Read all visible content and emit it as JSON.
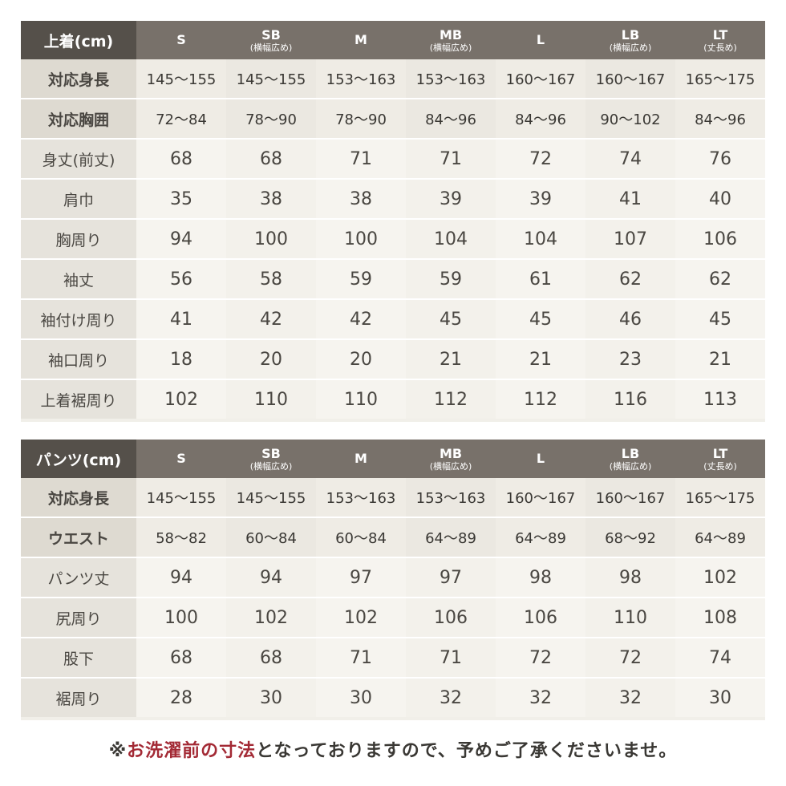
{
  "jacket": {
    "corner": "上着(cm)",
    "sizes": [
      {
        "main": "S",
        "sub": ""
      },
      {
        "main": "SB",
        "sub": "(横幅広め)"
      },
      {
        "main": "M",
        "sub": ""
      },
      {
        "main": "MB",
        "sub": "(横幅広め)"
      },
      {
        "main": "L",
        "sub": ""
      },
      {
        "main": "LB",
        "sub": "(横幅広め)"
      },
      {
        "main": "LT",
        "sub": "(丈長め)"
      }
    ],
    "rows": [
      {
        "label": "対応身長",
        "values": [
          "145〜155",
          "145〜155",
          "153〜163",
          "153〜163",
          "160〜167",
          "160〜167",
          "165〜175"
        ]
      },
      {
        "label": "対応胸囲",
        "values": [
          "72〜84",
          "78〜90",
          "78〜90",
          "84〜96",
          "84〜96",
          "90〜102",
          "84〜96"
        ]
      },
      {
        "label": "身丈(前丈)",
        "values": [
          "68",
          "68",
          "71",
          "71",
          "72",
          "74",
          "76"
        ]
      },
      {
        "label": "肩巾",
        "values": [
          "35",
          "38",
          "38",
          "39",
          "39",
          "41",
          "40"
        ]
      },
      {
        "label": "胸周り",
        "values": [
          "94",
          "100",
          "100",
          "104",
          "104",
          "107",
          "106"
        ]
      },
      {
        "label": "袖丈",
        "values": [
          "56",
          "58",
          "59",
          "59",
          "61",
          "62",
          "62"
        ]
      },
      {
        "label": "袖付け周り",
        "values": [
          "41",
          "42",
          "42",
          "45",
          "45",
          "46",
          "45"
        ]
      },
      {
        "label": "袖口周り",
        "values": [
          "18",
          "20",
          "20",
          "21",
          "21",
          "23",
          "21"
        ]
      },
      {
        "label": "上着裾周り",
        "values": [
          "102",
          "110",
          "110",
          "112",
          "112",
          "116",
          "113"
        ]
      }
    ]
  },
  "pants": {
    "corner": "パンツ(cm)",
    "sizes": [
      {
        "main": "S",
        "sub": ""
      },
      {
        "main": "SB",
        "sub": "(横幅広め)"
      },
      {
        "main": "M",
        "sub": ""
      },
      {
        "main": "MB",
        "sub": "(横幅広め)"
      },
      {
        "main": "L",
        "sub": ""
      },
      {
        "main": "LB",
        "sub": "(横幅広め)"
      },
      {
        "main": "LT",
        "sub": "(丈長め)"
      }
    ],
    "rows": [
      {
        "label": "対応身長",
        "values": [
          "145〜155",
          "145〜155",
          "153〜163",
          "153〜163",
          "160〜167",
          "160〜167",
          "165〜175"
        ]
      },
      {
        "label": "ウエスト",
        "values": [
          "58〜82",
          "60〜84",
          "60〜84",
          "64〜89",
          "64〜89",
          "68〜92",
          "64〜89"
        ]
      },
      {
        "label": "パンツ丈",
        "values": [
          "94",
          "94",
          "97",
          "97",
          "98",
          "98",
          "102"
        ]
      },
      {
        "label": "尻周り",
        "values": [
          "100",
          "102",
          "102",
          "106",
          "106",
          "110",
          "108"
        ]
      },
      {
        "label": "股下",
        "values": [
          "68",
          "68",
          "71",
          "71",
          "72",
          "72",
          "74"
        ]
      },
      {
        "label": "裾周り",
        "values": [
          "28",
          "30",
          "30",
          "32",
          "32",
          "32",
          "30"
        ]
      }
    ]
  },
  "note": {
    "prefix": "※",
    "highlight": "お洗濯前の寸法",
    "rest": "となっておりますので、予めご了承くださいませ。"
  },
  "colors": {
    "corner": "#55504a",
    "header": "#78716a",
    "highlight": "#a32a35"
  }
}
